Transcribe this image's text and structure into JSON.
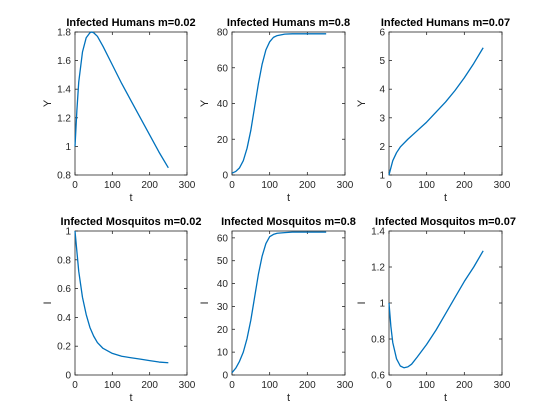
{
  "figure": {
    "background": "#ffffff",
    "axes_color": "#262626",
    "line_color": "#0072bd"
  },
  "chart_data": [
    {
      "type": "line",
      "title": "Infected Humans m=0.02",
      "xlabel": "t",
      "ylabel": "Y",
      "xlim": [
        0,
        300
      ],
      "ylim": [
        0.8,
        1.8
      ],
      "xticks": [
        0,
        100,
        200,
        300
      ],
      "yticks": [
        0.8,
        1,
        1.2,
        1.4,
        1.6,
        1.8
      ],
      "yticklabels": [
        "0.8",
        "1",
        "1.2",
        "1.4",
        "1.6",
        "1.8"
      ],
      "grid": false,
      "series": [
        {
          "x": [
            0,
            5,
            10,
            20,
            30,
            40,
            45,
            50,
            60,
            75,
            100,
            125,
            150,
            175,
            200,
            225,
            250
          ],
          "y": [
            1.0,
            1.25,
            1.45,
            1.66,
            1.76,
            1.795,
            1.8,
            1.795,
            1.77,
            1.7,
            1.57,
            1.44,
            1.32,
            1.2,
            1.08,
            0.96,
            0.85
          ]
        }
      ]
    },
    {
      "type": "line",
      "title": "Infected Humans m=0.8",
      "xlabel": "t",
      "ylabel": "Y",
      "xlim": [
        0,
        300
      ],
      "ylim": [
        0,
        80
      ],
      "xticks": [
        0,
        100,
        200,
        300
      ],
      "yticks": [
        0,
        20,
        40,
        60,
        80
      ],
      "yticklabels": [
        "0",
        "20",
        "40",
        "60",
        "80"
      ],
      "grid": false,
      "series": [
        {
          "x": [
            0,
            10,
            20,
            30,
            40,
            50,
            60,
            70,
            80,
            90,
            100,
            110,
            120,
            140,
            160,
            180,
            200,
            225,
            250
          ],
          "y": [
            1,
            2,
            4,
            8,
            15,
            25,
            38,
            51,
            62,
            70,
            74.5,
            77,
            78,
            78.8,
            79,
            79,
            79,
            79,
            79
          ]
        }
      ]
    },
    {
      "type": "line",
      "title": "Infected Humans m=0.07",
      "xlabel": "t",
      "ylabel": "Y",
      "xlim": [
        0,
        300
      ],
      "ylim": [
        1,
        6
      ],
      "xticks": [
        0,
        100,
        200,
        300
      ],
      "yticks": [
        1,
        2,
        3,
        4,
        5,
        6
      ],
      "yticklabels": [
        "1",
        "2",
        "3",
        "4",
        "5",
        "6"
      ],
      "grid": false,
      "series": [
        {
          "x": [
            0,
            5,
            10,
            20,
            30,
            50,
            75,
            100,
            125,
            150,
            175,
            200,
            225,
            250
          ],
          "y": [
            1.0,
            1.25,
            1.5,
            1.78,
            1.98,
            2.25,
            2.55,
            2.85,
            3.2,
            3.55,
            3.95,
            4.4,
            4.9,
            5.45
          ]
        }
      ]
    },
    {
      "type": "line",
      "title": "Infected Mosquitos m=0.02",
      "xlabel": "t",
      "ylabel": "I",
      "xlim": [
        0,
        300
      ],
      "ylim": [
        0,
        1
      ],
      "xticks": [
        0,
        100,
        200,
        300
      ],
      "yticks": [
        0,
        0.2,
        0.4,
        0.6,
        0.8,
        1
      ],
      "yticklabels": [
        "0",
        "0.2",
        "0.4",
        "0.6",
        "0.8",
        "1"
      ],
      "grid": false,
      "series": [
        {
          "x": [
            0,
            10,
            20,
            30,
            40,
            50,
            60,
            75,
            100,
            125,
            150,
            175,
            200,
            225,
            250
          ],
          "y": [
            1.0,
            0.72,
            0.54,
            0.42,
            0.33,
            0.27,
            0.225,
            0.185,
            0.15,
            0.13,
            0.12,
            0.11,
            0.1,
            0.09,
            0.085
          ]
        }
      ]
    },
    {
      "type": "line",
      "title": "Infected Mosquitos m=0.8",
      "xlabel": "t",
      "ylabel": "I",
      "xlim": [
        0,
        300
      ],
      "ylim": [
        0,
        63
      ],
      "xticks": [
        0,
        100,
        200,
        300
      ],
      "yticks": [
        0,
        10,
        20,
        30,
        40,
        50,
        60
      ],
      "yticklabels": [
        "0",
        "10",
        "20",
        "30",
        "40",
        "50",
        "60"
      ],
      "grid": false,
      "series": [
        {
          "x": [
            0,
            10,
            20,
            30,
            40,
            50,
            60,
            70,
            80,
            90,
            100,
            110,
            120,
            140,
            160,
            180,
            200,
            225,
            250
          ],
          "y": [
            1,
            3,
            6,
            10,
            16,
            24,
            34,
            44,
            52,
            57.5,
            60.5,
            61.5,
            62,
            62.3,
            62.5,
            62.5,
            62.5,
            62.5,
            62.5
          ]
        }
      ]
    },
    {
      "type": "line",
      "title": "Infected Mosquitos m=0.07",
      "xlabel": "t",
      "ylabel": "I",
      "xlim": [
        0,
        300
      ],
      "ylim": [
        0.6,
        1.4
      ],
      "xticks": [
        0,
        100,
        200,
        300
      ],
      "yticks": [
        0.6,
        0.8,
        1,
        1.2,
        1.4
      ],
      "yticklabels": [
        "0.6",
        "0.8",
        "1",
        "1.2",
        "1.4"
      ],
      "grid": false,
      "series": [
        {
          "x": [
            0,
            5,
            10,
            20,
            30,
            40,
            50,
            60,
            75,
            100,
            125,
            150,
            175,
            200,
            225,
            250
          ],
          "y": [
            1.0,
            0.87,
            0.78,
            0.69,
            0.65,
            0.64,
            0.645,
            0.66,
            0.7,
            0.77,
            0.85,
            0.94,
            1.03,
            1.12,
            1.2,
            1.29
          ]
        }
      ]
    }
  ]
}
